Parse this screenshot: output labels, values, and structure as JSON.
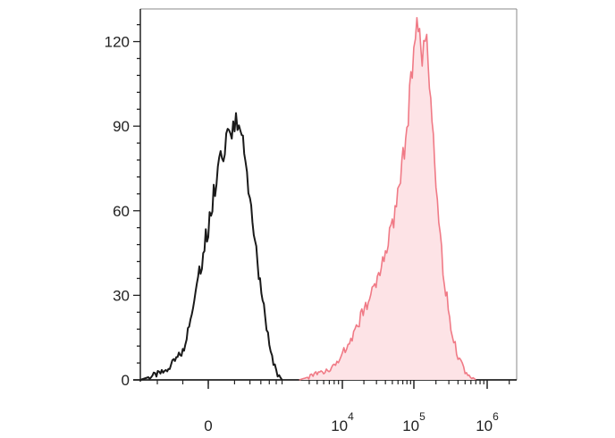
{
  "chart_data": {
    "type": "area",
    "title": "",
    "xlabel": "",
    "ylabel": "",
    "x_scale": "biexponential",
    "ylim": [
      0,
      130
    ],
    "y_ticks": [
      {
        "value": 0,
        "label": "0"
      },
      {
        "value": 30,
        "label": "30"
      },
      {
        "value": 60,
        "label": "60"
      },
      {
        "value": 90,
        "label": "90"
      },
      {
        "value": 120,
        "label": "120"
      }
    ],
    "x_ticks": [
      {
        "value": 0,
        "base": "0",
        "exp": ""
      },
      {
        "value": 10000,
        "base": "10",
        "exp": "4"
      },
      {
        "value": 100000,
        "base": "10",
        "exp": "5"
      },
      {
        "value": 1000000,
        "base": "10",
        "exp": "6"
      }
    ],
    "grid": false,
    "legend": "none",
    "series": [
      {
        "style": "line",
        "color": "#1a1a1a",
        "fill": "none",
        "x": [
          -800,
          -500,
          -300,
          -150,
          0,
          100,
          200,
          300,
          400,
          500,
          600,
          800,
          1000,
          1200,
          1500,
          1800
        ],
        "y": [
          0,
          3,
          10,
          30,
          55,
          75,
          85,
          92,
          88,
          80,
          65,
          40,
          25,
          12,
          3,
          0
        ]
      },
      {
        "style": "area",
        "color": "#f07a86",
        "fill": "#fde3e6",
        "x": [
          3000,
          5000,
          8000,
          12000,
          18000,
          25000,
          35000,
          50000,
          65000,
          80000,
          95000,
          110000,
          130000,
          150000,
          170000,
          200000,
          250000,
          320000,
          400000,
          500000,
          700000
        ],
        "y": [
          0,
          2,
          5,
          12,
          22,
          30,
          40,
          55,
          70,
          90,
          110,
          128,
          115,
          120,
          95,
          70,
          40,
          18,
          8,
          3,
          0
        ]
      }
    ],
    "colors": {
      "axis": "#222222",
      "control": "#1a1a1a",
      "sample_line": "#f07a86",
      "sample_fill": "#fde3e6"
    }
  }
}
